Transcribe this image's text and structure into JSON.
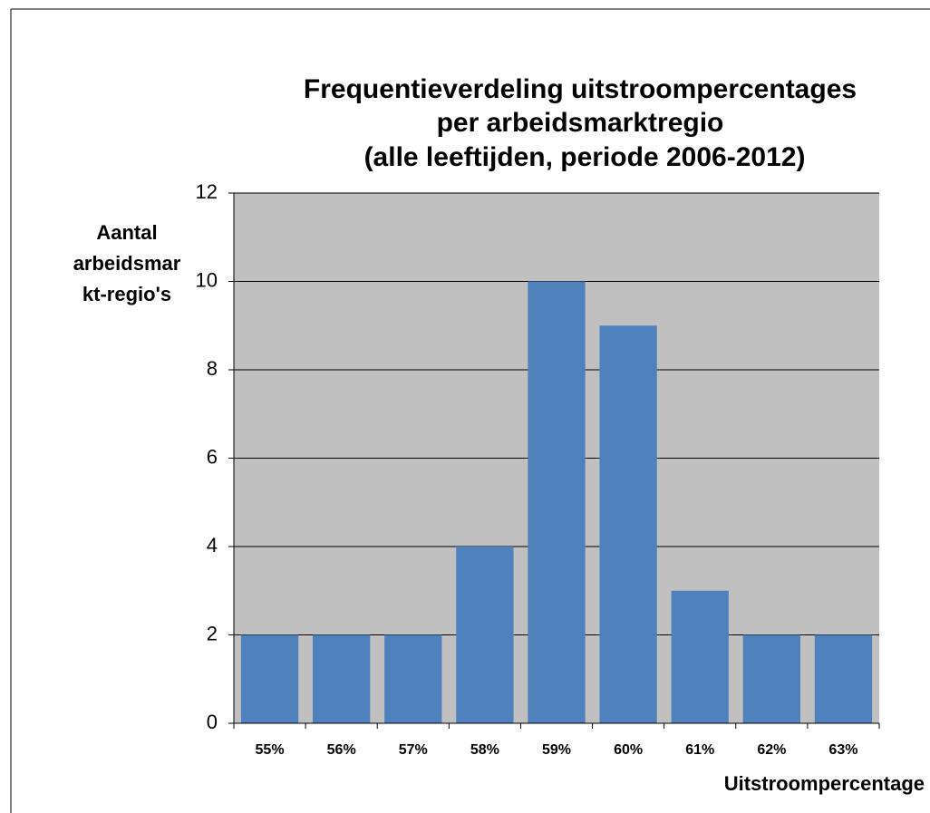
{
  "chart_data": {
    "type": "bar",
    "title": [
      "Frequentieverdeling uitstroompercentages",
      "per arbeidsmarktregio",
      "(alle leeftijden, periode 2006-2012)"
    ],
    "y_label": [
      "Aantal",
      "arbeidsmar",
      "kt-regio's"
    ],
    "x_label": "Uitstroompercentage",
    "categories": [
      "55%",
      "56%",
      "57%",
      "58%",
      "59%",
      "60%",
      "61%",
      "62%",
      "63%"
    ],
    "values": [
      2,
      2,
      2,
      4,
      10,
      9,
      3,
      2,
      2
    ],
    "color": "#4f81bd",
    "ylim": [
      0,
      12
    ],
    "yticks": [
      0,
      2,
      4,
      6,
      8,
      10,
      12
    ],
    "grid": true
  }
}
